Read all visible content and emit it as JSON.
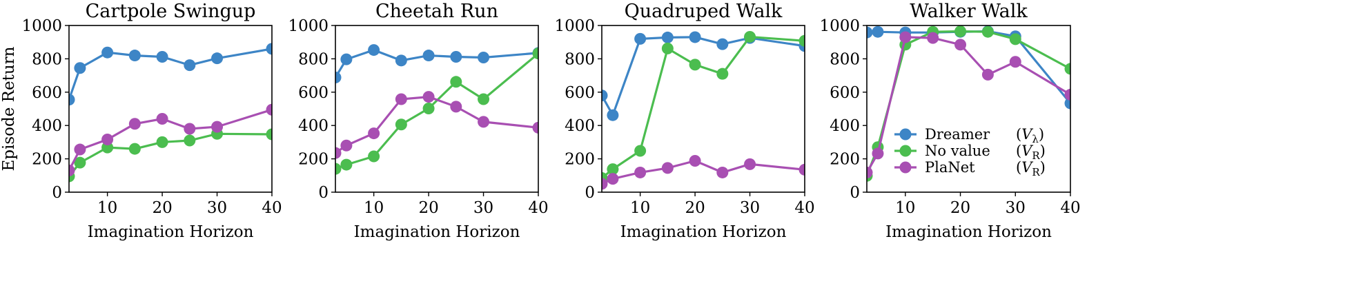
{
  "colors": {
    "dreamer": "#3d85c6",
    "no_value": "#4bbd4f",
    "planet": "#a84fb2"
  },
  "legend": {
    "position": "lower-right of last panel",
    "entries": [
      {
        "series": "Dreamer",
        "label": "Dreamer",
        "math": "V",
        "sub": "λ"
      },
      {
        "series": "No value",
        "label": "No value",
        "math": "V",
        "sub": "R"
      },
      {
        "series": "PlaNet",
        "label": "PlaNet",
        "math": "V",
        "sub": "R"
      }
    ]
  },
  "chart_data": [
    {
      "type": "line",
      "title": "Cartpole Swingup",
      "xlabel": "Imagination Horizon",
      "ylabel": "Episode Return",
      "xlim": [
        3,
        40
      ],
      "ylim": [
        0,
        1000
      ],
      "xticks": [
        10,
        20,
        30,
        40
      ],
      "yticks": [
        0,
        200,
        400,
        600,
        800,
        1000
      ],
      "grid": false,
      "x": [
        3,
        5,
        10,
        15,
        20,
        25,
        30,
        40
      ],
      "series": [
        {
          "name": "Dreamer",
          "values": [
            555,
            745,
            838,
            820,
            812,
            762,
            803,
            860
          ]
        },
        {
          "name": "No value",
          "values": [
            95,
            177,
            268,
            260,
            300,
            310,
            350,
            347
          ]
        },
        {
          "name": "PlaNet",
          "values": [
            130,
            256,
            316,
            410,
            440,
            380,
            392,
            495
          ]
        }
      ]
    },
    {
      "type": "line",
      "title": "Cheetah Run",
      "xlabel": "Imagination Horizon",
      "ylabel": "",
      "xlim": [
        3,
        40
      ],
      "ylim": [
        0,
        1000
      ],
      "xticks": [
        10,
        20,
        30,
        40
      ],
      "yticks": [
        0,
        200,
        400,
        600,
        800,
        1000
      ],
      "grid": false,
      "x": [
        3,
        5,
        10,
        15,
        20,
        25,
        30,
        40
      ],
      "series": [
        {
          "name": "Dreamer",
          "values": [
            688,
            797,
            853,
            790,
            820,
            812,
            808,
            835
          ]
        },
        {
          "name": "No value",
          "values": [
            140,
            165,
            215,
            406,
            502,
            662,
            558,
            832
          ]
        },
        {
          "name": "PlaNet",
          "values": [
            235,
            280,
            353,
            558,
            572,
            513,
            422,
            387
          ]
        }
      ]
    },
    {
      "type": "line",
      "title": "Quadruped Walk",
      "xlabel": "Imagination Horizon",
      "ylabel": "",
      "xlim": [
        3,
        40
      ],
      "ylim": [
        0,
        1000
      ],
      "xticks": [
        10,
        20,
        30,
        40
      ],
      "yticks": [
        0,
        200,
        400,
        600,
        800,
        1000
      ],
      "grid": false,
      "x": [
        3,
        5,
        10,
        15,
        20,
        25,
        30,
        40
      ],
      "series": [
        {
          "name": "Dreamer",
          "values": [
            580,
            462,
            920,
            928,
            930,
            888,
            925,
            877
          ]
        },
        {
          "name": "No value",
          "values": [
            85,
            138,
            248,
            862,
            765,
            710,
            932,
            908
          ]
        },
        {
          "name": "PlaNet",
          "values": [
            50,
            80,
            118,
            145,
            188,
            118,
            168,
            135
          ]
        }
      ]
    },
    {
      "type": "line",
      "title": "Walker Walk",
      "xlabel": "Imagination Horizon",
      "ylabel": "",
      "xlim": [
        3,
        40
      ],
      "ylim": [
        0,
        1000
      ],
      "xticks": [
        10,
        20,
        30,
        40
      ],
      "yticks": [
        0,
        200,
        400,
        600,
        800,
        1000
      ],
      "grid": false,
      "x": [
        3,
        5,
        10,
        15,
        20,
        25,
        30,
        40
      ],
      "series": [
        {
          "name": "Dreamer",
          "values": [
            958,
            962,
            958,
            958,
            962,
            965,
            935,
            533
          ]
        },
        {
          "name": "No value",
          "values": [
            98,
            270,
            885,
            962,
            965,
            962,
            918,
            740
          ]
        },
        {
          "name": "PlaNet",
          "values": [
            118,
            232,
            930,
            925,
            885,
            705,
            782,
            585
          ]
        }
      ]
    }
  ]
}
